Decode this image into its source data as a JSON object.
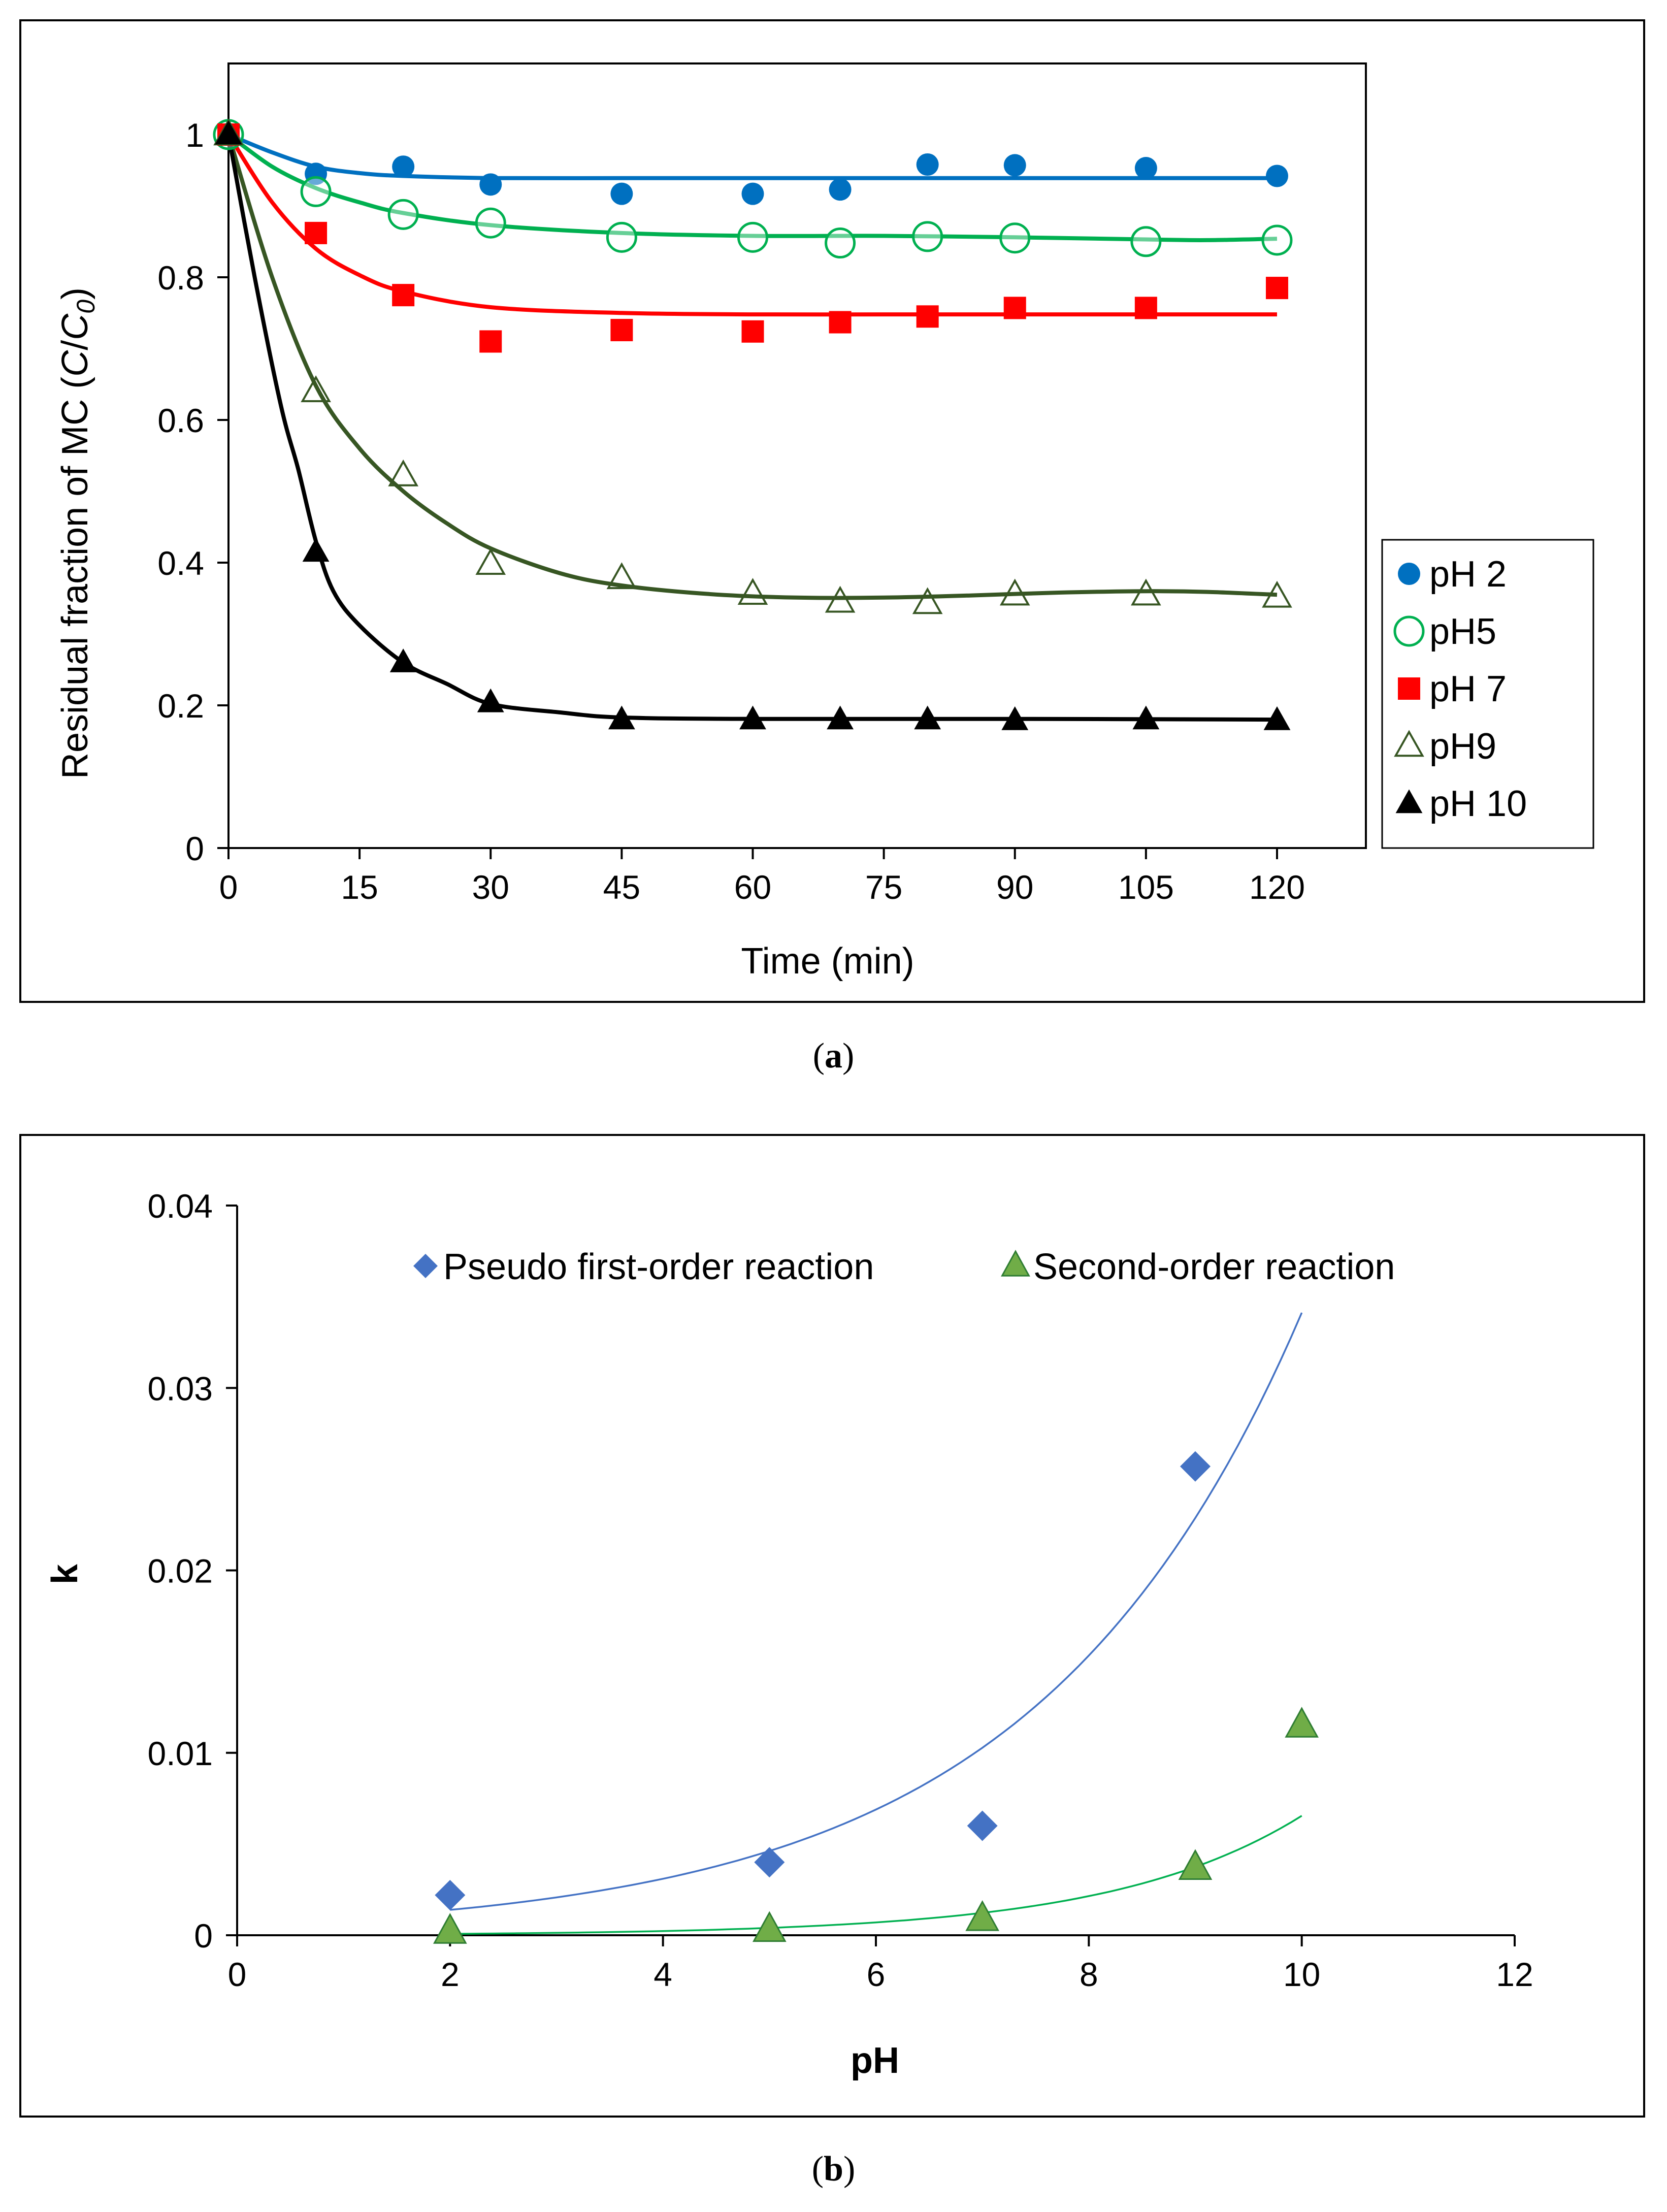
{
  "chart_data": [
    {
      "id": "a",
      "type": "scatter",
      "caption_label": "a",
      "xlabel": "Time (min)",
      "ylabel_parts": [
        "Residual fraction of MC (",
        "C",
        "/",
        "C",
        "0",
        ")"
      ],
      "xlim": [
        0,
        120
      ],
      "ylim": [
        0,
        1.0
      ],
      "xticks": [
        0,
        15,
        30,
        45,
        60,
        75,
        90,
        105,
        120
      ],
      "yticks": [
        0,
        0.2,
        0.4,
        0.6,
        0.8,
        1
      ],
      "x": [
        0,
        10,
        20,
        30,
        45,
        60,
        70,
        80,
        90,
        105,
        120
      ],
      "legend_position": "right",
      "grid": false,
      "series": [
        {
          "name": "pH 2",
          "marker": "circle-filled",
          "color": "#0070C0",
          "values": [
            1.0,
            0.945,
            0.955,
            0.93,
            0.917,
            0.917,
            0.923,
            0.958,
            0.957,
            0.953,
            0.942
          ],
          "fit": [
            [
              0,
              1.0
            ],
            [
              5,
              0.975
            ],
            [
              10,
              0.955
            ],
            [
              15,
              0.946
            ],
            [
              20,
              0.942
            ],
            [
              30,
              0.939
            ],
            [
              45,
              0.939
            ],
            [
              60,
              0.939
            ],
            [
              75,
              0.939
            ],
            [
              90,
              0.939
            ],
            [
              105,
              0.939
            ],
            [
              120,
              0.939
            ]
          ]
        },
        {
          "name": "pH5",
          "marker": "circle-open",
          "color": "#00B050",
          "values": [
            1.0,
            0.92,
            0.888,
            0.876,
            0.856,
            0.856,
            0.848,
            0.857,
            0.855,
            0.85,
            0.852
          ],
          "fit": [
            [
              0,
              1.0
            ],
            [
              5,
              0.955
            ],
            [
              10,
              0.925
            ],
            [
              15,
              0.905
            ],
            [
              20,
              0.89
            ],
            [
              30,
              0.873
            ],
            [
              45,
              0.862
            ],
            [
              60,
              0.858
            ],
            [
              75,
              0.858
            ],
            [
              90,
              0.856
            ],
            [
              105,
              0.853
            ],
            [
              112,
              0.852
            ],
            [
              120,
              0.854
            ]
          ]
        },
        {
          "name": "pH 7",
          "marker": "square-filled",
          "color": "#FF0000",
          "values": [
            1.0,
            0.862,
            0.775,
            0.71,
            0.726,
            0.724,
            0.737,
            0.745,
            0.757,
            0.757,
            0.785
          ],
          "fit": [
            [
              0,
              1.0
            ],
            [
              5,
              0.905
            ],
            [
              10,
              0.84
            ],
            [
              15,
              0.803
            ],
            [
              20,
              0.78
            ],
            [
              30,
              0.758
            ],
            [
              45,
              0.75
            ],
            [
              60,
              0.748
            ],
            [
              75,
              0.748
            ],
            [
              90,
              0.748
            ],
            [
              105,
              0.748
            ],
            [
              120,
              0.748
            ]
          ]
        },
        {
          "name": "pH9",
          "marker": "triangle-open",
          "color": "#375623",
          "values": [
            1.0,
            0.64,
            0.522,
            0.398,
            0.378,
            0.356,
            0.345,
            0.343,
            0.355,
            0.355,
            0.352
          ],
          "fit": [
            [
              0,
              1.0
            ],
            [
              5,
              0.8
            ],
            [
              10,
              0.648
            ],
            [
              15,
              0.56
            ],
            [
              20,
              0.5
            ],
            [
              25,
              0.455
            ],
            [
              30,
              0.42
            ],
            [
              38,
              0.385
            ],
            [
              45,
              0.368
            ],
            [
              55,
              0.356
            ],
            [
              65,
              0.351
            ],
            [
              75,
              0.351
            ],
            [
              85,
              0.354
            ],
            [
              95,
              0.358
            ],
            [
              105,
              0.36
            ],
            [
              112,
              0.359
            ],
            [
              120,
              0.355
            ]
          ]
        },
        {
          "name": "pH 10",
          "marker": "triangle-filled",
          "color": "#000000",
          "values": [
            1.0,
            0.415,
            0.26,
            0.204,
            0.18,
            0.18,
            0.18,
            0.18,
            0.179,
            0.18,
            0.179
          ],
          "fit": [
            [
              0,
              1.0
            ],
            [
              3,
              0.8
            ],
            [
              6,
              0.62
            ],
            [
              8,
              0.53
            ],
            [
              10,
              0.43
            ],
            [
              12,
              0.36
            ],
            [
              15,
              0.312
            ],
            [
              20,
              0.26
            ],
            [
              25,
              0.23
            ],
            [
              30,
              0.202
            ],
            [
              38,
              0.19
            ],
            [
              45,
              0.183
            ],
            [
              60,
              0.181
            ],
            [
              90,
              0.181
            ],
            [
              120,
              0.18
            ]
          ]
        }
      ]
    },
    {
      "id": "b",
      "type": "scatter",
      "caption_label": "b",
      "xlabel": "pH",
      "ylabel": "k",
      "xlim": [
        0,
        12
      ],
      "ylim": [
        0,
        0.04
      ],
      "xticks": [
        0,
        2,
        4,
        6,
        8,
        10,
        12
      ],
      "yticks": [
        0,
        0.01,
        0.02,
        0.03,
        0.04
      ],
      "legend_position": "top",
      "grid": false,
      "series": [
        {
          "name": "Pseudo first-order reaction",
          "marker": "diamond",
          "color": "#4472C4",
          "x": [
            2,
            5,
            7,
            9
          ],
          "values": [
            0.0022,
            0.004,
            0.006,
            0.0257
          ],
          "trend": {
            "type": "exponential",
            "color": "#4472C4",
            "a": 0.000625,
            "b": 0.4,
            "x_range": [
              2,
              10
            ]
          }
        },
        {
          "name": "Second-order reaction",
          "marker": "triangle",
          "color": "#70AD47",
          "edge": "#2E7D32",
          "x": [
            2,
            5,
            7,
            9,
            10
          ],
          "values": [
            0.0002,
            0.0003,
            0.0009,
            0.0037,
            0.0115
          ],
          "trend": {
            "type": "exponential",
            "color": "#00B050",
            "a": 2.47e-05,
            "b": 0.558,
            "x_range": [
              2,
              10
            ]
          }
        }
      ]
    }
  ]
}
